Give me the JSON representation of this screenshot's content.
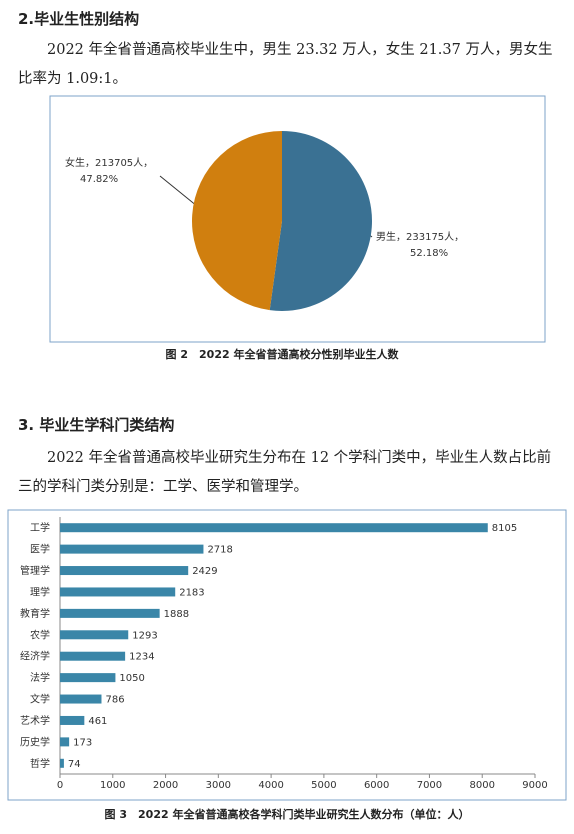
{
  "sections": [
    {
      "heading": "2.毕业生性别结构",
      "paragraph": "2022 年全省普通高校毕业生中，男生 23.32 万人，女生 21.37 万人，男女生比率为 1.09:1。",
      "chart": {
        "type": "pie",
        "caption": "图 2　2022 年全省普通高校分性别毕业生人数",
        "label_lines": [
          "男生，233175人，",
          "女生，213705人，"
        ],
        "values": [
          52.18,
          47.82
        ],
        "value_labels": [
          "52.18%",
          "47.82%"
        ],
        "colors": [
          "#3a7193",
          "#d07f0f"
        ]
      }
    },
    {
      "heading": "3.  毕业生学科门类结构",
      "paragraph": "2022 年全省普通高校毕业研究生分布在 12 个学科门类中，毕业生人数占比前三的学科门类分别是：工学、医学和管理学。",
      "chart": {
        "type": "bar",
        "orientation": "horizontal",
        "caption": "图 3　2022 年全省普通高校各学科门类毕业研究生人数分布（单位：人）",
        "categories": [
          "工学",
          "医学",
          "管理学",
          "理学",
          "教育学",
          "农学",
          "经济学",
          "法学",
          "文学",
          "艺术学",
          "历史学",
          "哲学"
        ],
        "values": [
          8105,
          2718,
          2429,
          2183,
          1888,
          1293,
          1234,
          1050,
          786,
          461,
          173,
          74
        ],
        "color": "#3a86a8",
        "xlim": [
          0,
          9000
        ],
        "xticks": [
          0,
          1000,
          2000,
          3000,
          4000,
          5000,
          6000,
          7000,
          8000,
          9000
        ],
        "grid": false
      }
    }
  ]
}
